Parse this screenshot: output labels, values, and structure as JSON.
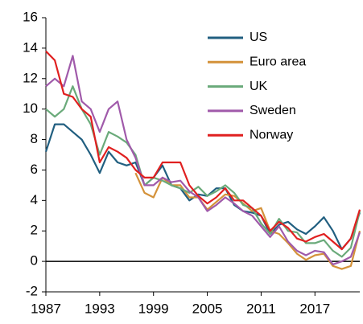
{
  "chart_data": {
    "type": "line",
    "x": [
      1987,
      1988,
      1989,
      1990,
      1991,
      1992,
      1993,
      1994,
      1995,
      1996,
      1997,
      1998,
      1999,
      2000,
      2001,
      2002,
      2003,
      2004,
      2005,
      2006,
      2007,
      2008,
      2009,
      2010,
      2011,
      2012,
      2013,
      2014,
      2015,
      2016,
      2017,
      2018,
      2019,
      2020,
      2021,
      2022
    ],
    "series": [
      {
        "name": "US",
        "color": "#215f80",
        "values": [
          7.2,
          9.0,
          9.0,
          8.5,
          8.0,
          7.0,
          5.8,
          7.2,
          6.5,
          6.3,
          6.5,
          5.0,
          5.5,
          6.3,
          5.0,
          4.8,
          4.0,
          4.4,
          4.3,
          4.8,
          4.8,
          3.7,
          3.3,
          3.2,
          3.0,
          1.8,
          2.4,
          2.6,
          2.1,
          1.8,
          2.3,
          2.9,
          2.0,
          0.8,
          1.5,
          3.2
        ]
      },
      {
        "name": "Euro area",
        "color": "#d4923a",
        "values": [
          null,
          null,
          null,
          null,
          null,
          null,
          null,
          null,
          null,
          null,
          5.8,
          4.5,
          4.2,
          5.5,
          5.0,
          5.0,
          4.2,
          4.2,
          3.4,
          3.9,
          4.4,
          4.3,
          3.8,
          3.3,
          3.5,
          2.0,
          1.8,
          1.2,
          0.5,
          0.1,
          0.4,
          0.5,
          -0.3,
          -0.5,
          -0.3,
          2.0
        ]
      },
      {
        "name": "UK",
        "color": "#6aaa7a",
        "values": [
          10.0,
          9.5,
          10.0,
          11.5,
          10.0,
          9.0,
          7.0,
          8.5,
          8.2,
          7.8,
          7.0,
          5.0,
          5.5,
          5.3,
          5.0,
          4.8,
          4.5,
          4.9,
          4.3,
          4.6,
          5.0,
          4.5,
          3.7,
          3.5,
          2.5,
          1.8,
          2.8,
          2.0,
          1.9,
          1.2,
          1.2,
          1.4,
          0.7,
          0.3,
          0.9,
          3.3
        ]
      },
      {
        "name": "Sweden",
        "color": "#a05aaa",
        "values": [
          11.5,
          12.0,
          11.5,
          13.5,
          10.5,
          10.0,
          8.5,
          10.0,
          10.5,
          8.0,
          6.8,
          5.0,
          5.0,
          5.5,
          5.2,
          5.3,
          4.6,
          4.2,
          3.3,
          3.7,
          4.2,
          3.8,
          3.3,
          3.0,
          2.3,
          1.6,
          2.3,
          1.3,
          0.7,
          0.4,
          0.7,
          0.6,
          -0.2,
          0.0,
          0.3,
          1.9
        ]
      },
      {
        "name": "Norway",
        "color": "#e02020",
        "values": [
          13.8,
          13.2,
          11.0,
          10.8,
          10.0,
          9.5,
          6.5,
          7.5,
          7.2,
          6.8,
          6.0,
          5.5,
          5.5,
          6.5,
          6.5,
          6.5,
          5.0,
          4.3,
          3.8,
          4.2,
          4.8,
          4.0,
          4.0,
          3.5,
          3.0,
          2.0,
          2.6,
          2.2,
          1.5,
          1.3,
          1.6,
          1.8,
          1.3,
          0.8,
          1.5,
          3.4
        ]
      }
    ],
    "xlim": [
      1987,
      2022
    ],
    "xticks": [
      1987,
      1993,
      1999,
      2005,
      2011,
      2017
    ],
    "ylim": [
      -2,
      16
    ],
    "yticks": [
      16,
      14,
      12,
      10,
      8,
      6,
      4,
      2,
      0,
      -2
    ]
  }
}
